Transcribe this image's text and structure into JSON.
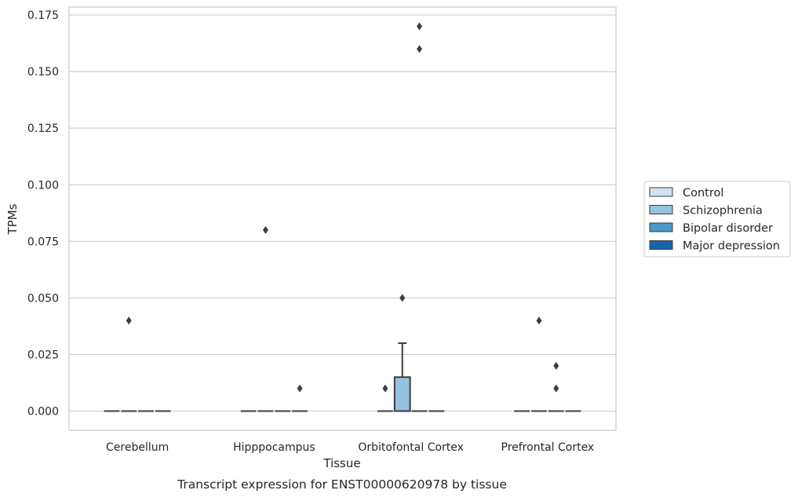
{
  "caption": "Transcript expression for ENST00000620978 by tissue",
  "chart_data": {
    "type": "box",
    "xlabel": "Tissue",
    "ylabel": "TPMs",
    "ylim": [
      -0.0085,
      0.1785
    ],
    "yticks": [
      0.0,
      0.025,
      0.05,
      0.075,
      0.1,
      0.125,
      0.15,
      0.175
    ],
    "ytick_labels": [
      "0.000",
      "0.025",
      "0.050",
      "0.075",
      "0.100",
      "0.125",
      "0.150",
      "0.175"
    ],
    "grid": "horizontal",
    "legend_position": "right",
    "categories": [
      "Cerebellum",
      "Hipppocampus",
      "Orbitofontal Cortex",
      "Prefrontal Cortex"
    ],
    "series": [
      {
        "name": "Control",
        "color": "#d0e2f1",
        "boxes": [
          {
            "q1": 0,
            "median": 0,
            "q3": 0,
            "whisker_low": 0,
            "whisker_high": 0,
            "outliers": []
          },
          {
            "q1": 0,
            "median": 0,
            "q3": 0,
            "whisker_low": 0,
            "whisker_high": 0,
            "outliers": []
          },
          {
            "q1": 0,
            "median": 0,
            "q3": 0,
            "whisker_low": 0,
            "whisker_high": 0,
            "outliers": [
              0.01
            ]
          },
          {
            "q1": 0,
            "median": 0,
            "q3": 0,
            "whisker_low": 0,
            "whisker_high": 0,
            "outliers": []
          }
        ]
      },
      {
        "name": "Schizophrenia",
        "color": "#94c4df",
        "boxes": [
          {
            "q1": 0,
            "median": 0,
            "q3": 0,
            "whisker_low": 0,
            "whisker_high": 0,
            "outliers": [
              0.04
            ]
          },
          {
            "q1": 0,
            "median": 0,
            "q3": 0,
            "whisker_low": 0,
            "whisker_high": 0,
            "outliers": [
              0.08
            ]
          },
          {
            "q1": 0,
            "median": 0,
            "q3": 0.015,
            "whisker_low": 0,
            "whisker_high": 0.03,
            "outliers": [
              0.05
            ]
          },
          {
            "q1": 0,
            "median": 0,
            "q3": 0,
            "whisker_low": 0,
            "whisker_high": 0,
            "outliers": [
              0.04
            ]
          }
        ]
      },
      {
        "name": "Bipolar disorder",
        "color": "#4a98c9",
        "boxes": [
          {
            "q1": 0,
            "median": 0,
            "q3": 0,
            "whisker_low": 0,
            "whisker_high": 0,
            "outliers": []
          },
          {
            "q1": 0,
            "median": 0,
            "q3": 0,
            "whisker_low": 0,
            "whisker_high": 0,
            "outliers": []
          },
          {
            "q1": 0,
            "median": 0,
            "q3": 0,
            "whisker_low": 0,
            "whisker_high": 0,
            "outliers": [
              0.16,
              0.17
            ]
          },
          {
            "q1": 0,
            "median": 0,
            "q3": 0,
            "whisker_low": 0,
            "whisker_high": 0,
            "outliers": [
              0.01,
              0.02
            ]
          }
        ]
      },
      {
        "name": "Major depression",
        "color": "#1764ab",
        "boxes": [
          {
            "q1": 0,
            "median": 0,
            "q3": 0,
            "whisker_low": 0,
            "whisker_high": 0,
            "outliers": []
          },
          {
            "q1": 0,
            "median": 0,
            "q3": 0,
            "whisker_low": 0,
            "whisker_high": 0,
            "outliers": [
              0.01
            ]
          },
          {
            "q1": 0,
            "median": 0,
            "q3": 0,
            "whisker_low": 0,
            "whisker_high": 0,
            "outliers": []
          },
          {
            "q1": 0,
            "median": 0,
            "q3": 0,
            "whisker_low": 0,
            "whisker_high": 0,
            "outliers": []
          }
        ]
      }
    ]
  }
}
